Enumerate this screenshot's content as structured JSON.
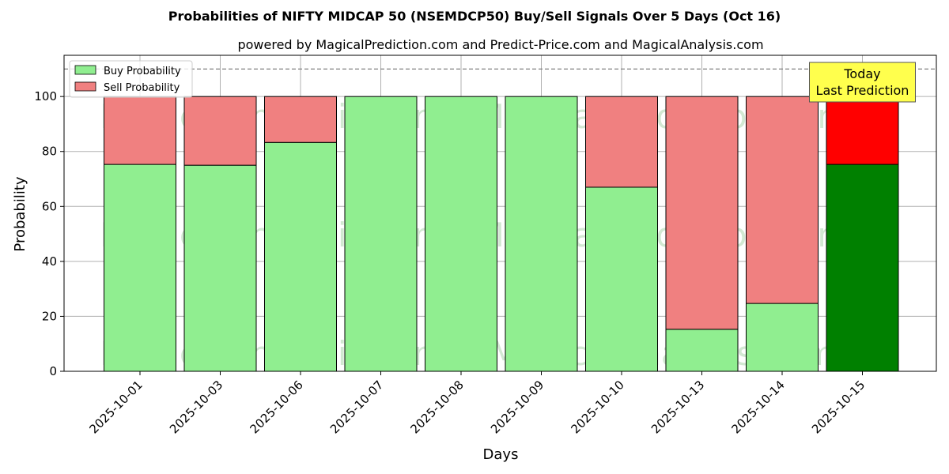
{
  "chart_data": {
    "type": "bar",
    "stacked": true,
    "title": "Probabilities of NIFTY MIDCAP 50 (NSEMDCP50) Buy/Sell Signals Over 5 Days (Oct 16)",
    "subtitle": "powered by MagicalPrediction.com and Predict-Price.com and MagicalAnalysis.com",
    "xlabel": "Days",
    "ylabel": "Probability",
    "ylim": [
      0,
      115
    ],
    "yticks": [
      0,
      20,
      40,
      60,
      80,
      100
    ],
    "reference_line": 110,
    "grid": true,
    "legend_position": "top-left",
    "categories": [
      "2025-10-01",
      "2025-10-03",
      "2025-10-06",
      "2025-10-07",
      "2025-10-08",
      "2025-10-09",
      "2025-10-10",
      "2025-10-13",
      "2025-10-14",
      "2025-10-15"
    ],
    "series": [
      {
        "name": "Buy Probability",
        "values": [
          75.3,
          75.0,
          83.3,
          100,
          100,
          100,
          67.0,
          15.3,
          24.7,
          75.3
        ]
      },
      {
        "name": "Sell Probability",
        "values": [
          24.7,
          25.0,
          16.7,
          0,
          0,
          0,
          33.0,
          84.7,
          75.3,
          24.7
        ]
      }
    ],
    "highlight_index": 9,
    "annotation": [
      "Today",
      "Last Prediction"
    ],
    "watermarks": [
      "MagicalAnalysis.com",
      "MagicalPrediction.com"
    ]
  },
  "colors": {
    "buy": "#90ee90",
    "sell": "#f08080",
    "buy_highlight": "#008000",
    "sell_highlight": "#ff0000",
    "annotation_bg": "#ffff4d"
  }
}
